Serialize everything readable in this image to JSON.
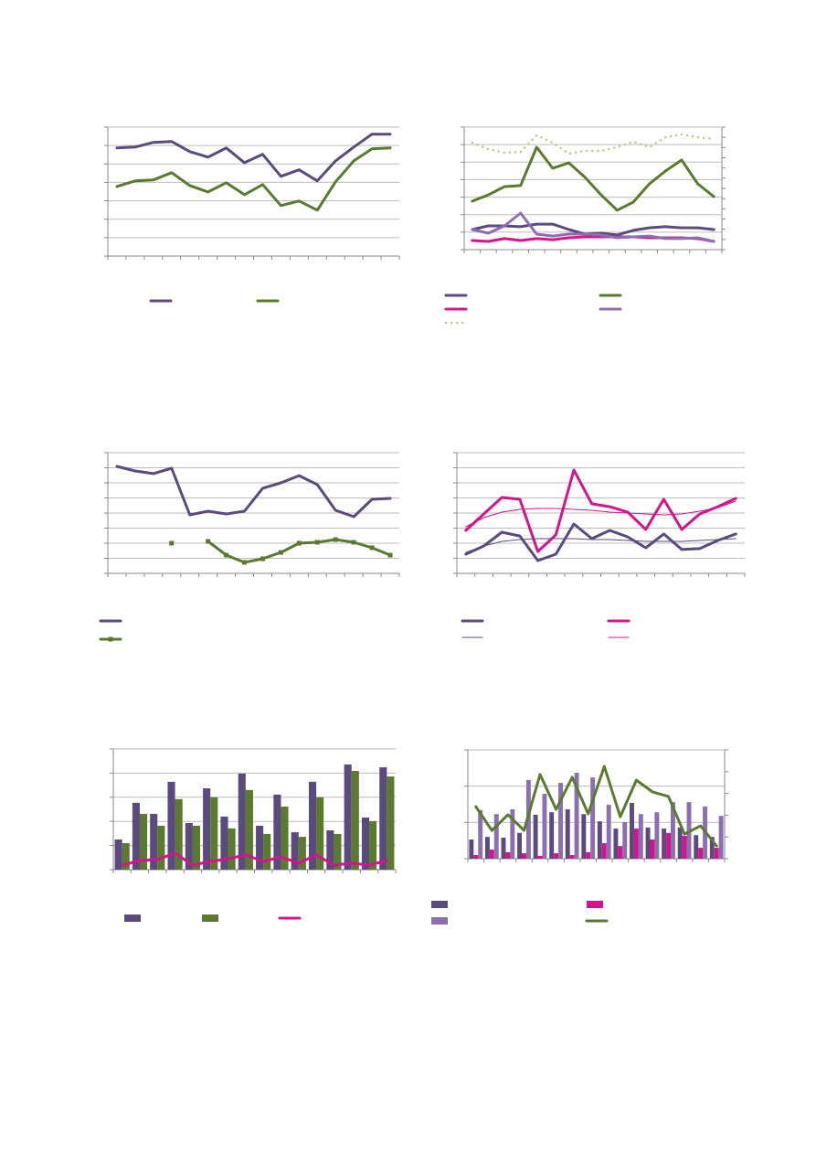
{
  "chart_data": [
    {
      "type": "line",
      "legend": "bottom",
      "grid": true,
      "categories": [
        null,
        null,
        null,
        null,
        null,
        null,
        null,
        null,
        null,
        null,
        null,
        null,
        null,
        null,
        null,
        null
      ],
      "ylim": [
        0,
        7
      ],
      "yticks": [
        0,
        1,
        2,
        3,
        4,
        5,
        6,
        7
      ],
      "series": [
        {
          "color": "#5b4a7e",
          "values": [
            5.87,
            5.92,
            6.17,
            6.22,
            5.67,
            5.37,
            5.87,
            5.07,
            5.52,
            4.33,
            4.68,
            4.08,
            5.17,
            5.92,
            6.62,
            6.62
          ]
        },
        {
          "color": "#5a7a2e",
          "values": [
            3.78,
            4.08,
            4.13,
            4.53,
            3.83,
            3.48,
            3.98,
            3.33,
            3.88,
            2.74,
            2.99,
            2.49,
            4.03,
            5.17,
            5.82,
            5.87
          ]
        }
      ]
    },
    {
      "type": "line",
      "legend": "bottom",
      "grid": true,
      "categories": [
        null,
        null,
        null,
        null,
        null,
        null,
        null,
        null,
        null,
        null,
        null,
        null,
        null,
        null,
        null,
        null
      ],
      "ylim": [
        0,
        7
      ],
      "yticks": [
        0,
        1,
        2,
        3,
        4,
        5,
        6,
        7
      ],
      "y2lim": [
        0,
        12
      ],
      "y2ticks": [
        0,
        1,
        2,
        3,
        4,
        5,
        6,
        7,
        8,
        9,
        10,
        11,
        12
      ],
      "series": [
        {
          "color": "#5b4a7e",
          "values": [
            1.15,
            1.36,
            1.36,
            1.31,
            1.46,
            1.46,
            1.15,
            0.89,
            0.94,
            0.84,
            1.1,
            1.25,
            1.31,
            1.25,
            1.25,
            1.15
          ]
        },
        {
          "color": "#5a7a2e",
          "values": [
            2.77,
            3.13,
            3.6,
            3.66,
            5.85,
            4.65,
            4.96,
            4.13,
            3.13,
            2.25,
            2.72,
            3.76,
            4.49,
            5.12,
            3.76,
            3.03
          ]
        },
        {
          "color": "#d4148c",
          "values": [
            0.52,
            0.47,
            0.63,
            0.52,
            0.63,
            0.57,
            0.68,
            0.73,
            0.73,
            0.73,
            0.73,
            0.68,
            0.68,
            0.68,
            0.63,
            0.47
          ]
        },
        {
          "color": "#8c6fb0",
          "values": [
            1.15,
            0.94,
            1.36,
            2.09,
            0.89,
            0.78,
            0.89,
            0.89,
            0.84,
            0.68,
            0.73,
            0.78,
            0.63,
            0.63,
            0.68,
            0.47
          ]
        },
        {
          "color": "#b8cc8a",
          "style": "dotted",
          "axis": "y2",
          "values": [
            10.48,
            9.85,
            9.49,
            9.58,
            11.19,
            10.48,
            9.4,
            9.67,
            9.67,
            10.03,
            10.57,
            10.03,
            11.01,
            11.28,
            11.01,
            10.84
          ]
        }
      ]
    },
    {
      "type": "line",
      "legend": "bottom",
      "grid": true,
      "categories": [
        null,
        null,
        null,
        null,
        null,
        null,
        null,
        null,
        null,
        null,
        null,
        null,
        null,
        null,
        null,
        null
      ],
      "ylim": [
        0,
        8
      ],
      "yticks": [
        0,
        1,
        2,
        3,
        4,
        5,
        6,
        7,
        8
      ],
      "series": [
        {
          "color": "#5b4a7e",
          "values": [
            7.09,
            6.79,
            6.61,
            6.97,
            3.88,
            4.12,
            3.94,
            4.12,
            5.64,
            6.0,
            6.48,
            5.88,
            4.18,
            3.76,
            4.91,
            4.97
          ]
        },
        {
          "color": "#5a7a2e",
          "marker": "square",
          "values": [
            null,
            null,
            null,
            2.0,
            null,
            2.12,
            1.21,
            0.73,
            0.97,
            1.39,
            2.0,
            2.06,
            2.24,
            2.06,
            1.7,
            1.21
          ]
        }
      ]
    },
    {
      "type": "line",
      "legend": "bottom",
      "grid": true,
      "categories": [
        null,
        null,
        null,
        null,
        null,
        null,
        null,
        null,
        null,
        null,
        null,
        null,
        null,
        null,
        null,
        null
      ],
      "ylim": [
        0,
        8
      ],
      "yticks": [
        0,
        1,
        2,
        3,
        4,
        5,
        6,
        7,
        8
      ],
      "series": [
        {
          "color": "#5b4a7e",
          "values": [
            1.27,
            1.82,
            2.73,
            2.48,
            0.85,
            1.27,
            3.27,
            2.3,
            2.85,
            2.42,
            1.7,
            2.61,
            1.58,
            1.64,
            2.18,
            2.61
          ]
        },
        {
          "color": "#d4148c",
          "values": [
            2.85,
            3.94,
            5.03,
            4.91,
            1.45,
            2.55,
            6.85,
            4.61,
            4.42,
            4.06,
            2.91,
            4.91,
            2.91,
            3.94,
            4.42,
            4.97
          ]
        },
        {
          "color": "#5b4a7e",
          "width": "thin",
          "values": [
            1.39,
            1.82,
            2.12,
            2.24,
            2.3,
            2.3,
            2.3,
            2.24,
            2.24,
            2.18,
            2.12,
            2.12,
            2.12,
            2.18,
            2.24,
            2.3
          ]
        },
        {
          "color": "#d4148c",
          "width": "thin",
          "values": [
            3.09,
            3.7,
            4.06,
            4.24,
            4.3,
            4.3,
            4.24,
            4.18,
            4.06,
            4.0,
            3.94,
            3.88,
            3.94,
            4.12,
            4.36,
            4.79
          ]
        }
      ]
    },
    {
      "type": "bar",
      "legend": "bottom",
      "grid": true,
      "categories": [
        null,
        null,
        null,
        null,
        null,
        null,
        null,
        null,
        null,
        null,
        null,
        null,
        null,
        null,
        null,
        null
      ],
      "ylim": [
        0,
        5
      ],
      "yticks": [
        0,
        1,
        2,
        3,
        4,
        5
      ],
      "series": [
        {
          "color": "#5b4a7e",
          "values": [
            1.25,
            2.77,
            2.31,
            3.64,
            1.93,
            3.37,
            2.2,
            3.98,
            1.82,
            3.11,
            1.55,
            3.64,
            1.63,
            4.36,
            2.16,
            4.24
          ]
        },
        {
          "color": "#5a7a2e",
          "values": [
            1.1,
            2.31,
            1.82,
            2.92,
            1.82,
            3.0,
            1.71,
            3.3,
            1.48,
            2.61,
            1.36,
            3.0,
            1.48,
            4.09,
            2.01,
            3.86
          ]
        },
        {
          "color": "#d4148c",
          "type": "line",
          "values": [
            0.19,
            0.38,
            0.42,
            0.68,
            0.19,
            0.34,
            0.45,
            0.61,
            0.34,
            0.53,
            0.27,
            0.61,
            0.19,
            0.27,
            0.19,
            0.38
          ]
        }
      ]
    },
    {
      "type": "bar",
      "legend": "bottom",
      "grid": true,
      "categories": [
        null,
        null,
        null,
        null,
        null,
        null,
        null,
        null,
        null,
        null,
        null,
        null,
        null,
        null,
        null,
        null
      ],
      "ylim": [
        0,
        3
      ],
      "yticks": [
        0,
        1,
        2,
        3
      ],
      "y2lim": [
        0,
        5
      ],
      "y2ticks": [
        0,
        1,
        2,
        3,
        4,
        5
      ],
      "series": [
        {
          "color": "#5b4a7e",
          "values": [
            0.53,
            0.6,
            0.58,
            0.71,
            1.21,
            1.28,
            1.36,
            1.23,
            1.03,
            0.83,
            1.54,
            0.86,
            0.83,
            0.86,
            0.65,
            0.6
          ]
        },
        {
          "color": "#d4148c",
          "values": [
            0.1,
            0.25,
            0.18,
            0.15,
            0.08,
            0.15,
            0.1,
            0.18,
            0.43,
            0.35,
            0.83,
            0.53,
            0.71,
            0.63,
            0.3,
            0.3
          ]
        },
        {
          "color": "#8c6fb0",
          "values": [
            1.34,
            1.23,
            1.36,
            2.17,
            1.79,
            2.09,
            2.37,
            2.24,
            1.49,
            1.01,
            1.23,
            1.28,
            1.56,
            1.56,
            1.44,
            1.18
          ]
        },
        {
          "color": "#5a7a2e",
          "type": "line",
          "axis": "y2",
          "values": [
            2.39,
            1.3,
            2.02,
            1.3,
            3.87,
            2.27,
            3.74,
            2.06,
            4.24,
            1.93,
            3.61,
            3.07,
            2.86,
            1.13,
            1.51,
            0.59
          ]
        }
      ]
    }
  ]
}
